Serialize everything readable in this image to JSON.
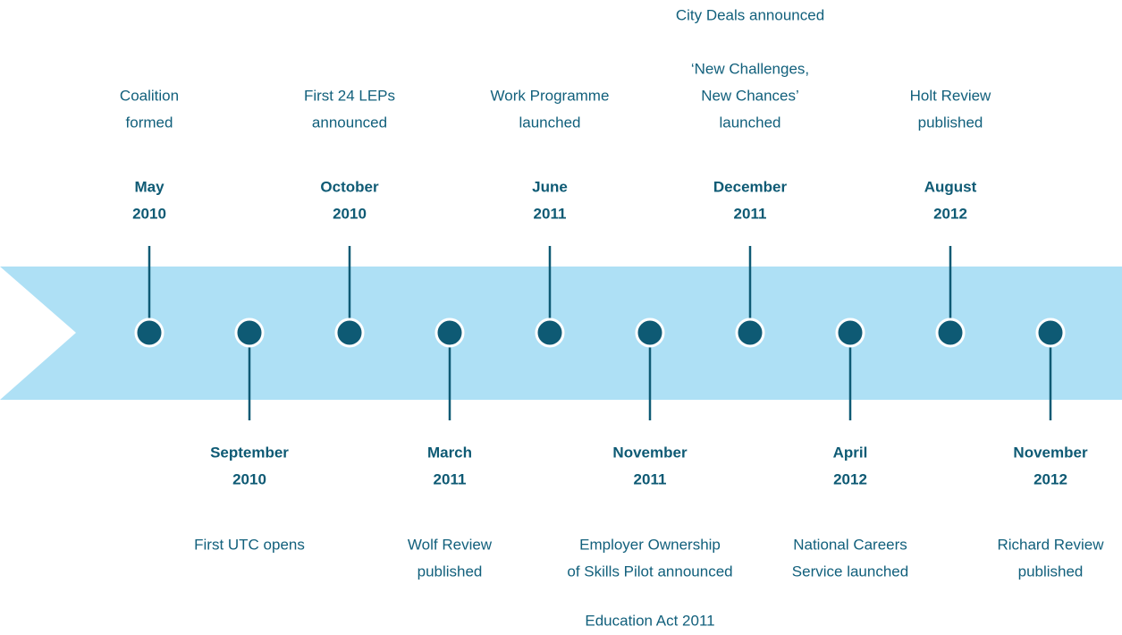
{
  "events": [
    {
      "month": "May",
      "year": "2010",
      "position": "above",
      "description": [
        "Coalition",
        "formed"
      ]
    },
    {
      "month": "September",
      "year": "2010",
      "position": "below",
      "description": [
        "First UTC opens"
      ]
    },
    {
      "month": "October",
      "year": "2010",
      "position": "above",
      "description": [
        "First 24 LEPs",
        "announced"
      ]
    },
    {
      "month": "March",
      "year": "2011",
      "position": "below",
      "description": [
        "Wolf Review",
        "published"
      ]
    },
    {
      "month": "June",
      "year": "2011",
      "position": "above",
      "description": [
        "Work Programme",
        "launched"
      ]
    },
    {
      "month": "November",
      "year": "2011",
      "position": "below",
      "description": [
        "Employer Ownership",
        "of Skills Pilot announced"
      ],
      "note": "Education Act 2011"
    },
    {
      "month": "December",
      "year": "2011",
      "position": "above",
      "description": [
        "‘New Challenges,",
        "New Chances’",
        "launched"
      ],
      "note": "City Deals announced"
    },
    {
      "month": "April",
      "year": "2012",
      "position": "below",
      "description": [
        "National Careers",
        "Service launched"
      ]
    },
    {
      "month": "August",
      "year": "2012",
      "position": "above",
      "description": [
        "Holt Review",
        "published"
      ]
    },
    {
      "month": "November",
      "year": "2012",
      "position": "below",
      "description": [
        "Richard Review",
        "published"
      ]
    }
  ]
}
